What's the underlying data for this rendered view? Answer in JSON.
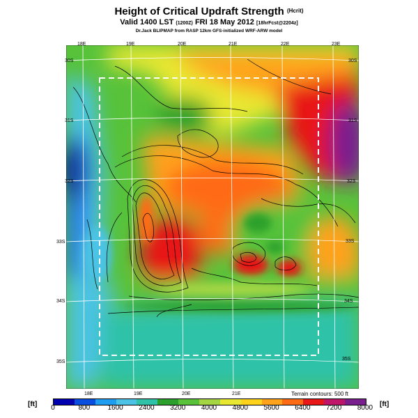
{
  "header": {
    "title": "Height of Critical Updraft Strength",
    "title_unit": "(Hcrit)",
    "subtitle": "Valid 1400 LST",
    "subtitle_small1": "(1200Z)",
    "subtitle_date": "FRI 18 May 2012",
    "subtitle_small2": "[18hrFcst@2204z]",
    "credit": "Dr.Jack BLIPMAP from RASP 12km GFS-initialized WRF-ARW model"
  },
  "map": {
    "lon_top": [
      "18E",
      "19E",
      "20E",
      "21E",
      "22E",
      "23E"
    ],
    "lon_bottom": [
      "18E",
      "19E",
      "20E",
      "21E"
    ],
    "lat_right": [
      "30S",
      "31S",
      "32S",
      "33S",
      "34S",
      "35S"
    ],
    "lat_left": [
      "30S",
      "31S",
      "32S",
      "33S",
      "34S",
      "35S"
    ],
    "terrain_note": "Terrain contours: 500 ft"
  },
  "legend": {
    "unit": "[ft]",
    "ticks": [
      "0",
      "800",
      "1600",
      "2400",
      "3200",
      "4000",
      "4800",
      "5600",
      "6400",
      "7200",
      "8000"
    ],
    "colors": [
      "#0000b0",
      "#0a4ee0",
      "#1f9df0",
      "#4cc3e4",
      "#2fc2a8",
      "#2ca02c",
      "#57c23a",
      "#a4d644",
      "#e8e832",
      "#ffd21c",
      "#ffa21c",
      "#ff6a14",
      "#e81818",
      "#c0166a",
      "#7a1f8e"
    ]
  }
}
